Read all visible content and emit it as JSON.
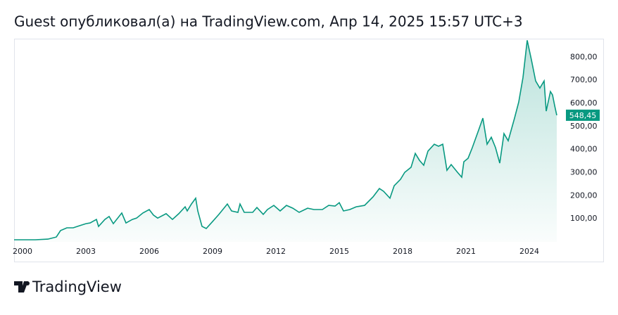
{
  "chart_data": {
    "type": "area",
    "title": "Guest опубликовал(а) на TradingView.com, Апр 14, 2025 15:57 UTC+3",
    "x": [
      1999.6,
      2000.6,
      2001.2,
      2001.6,
      2001.8,
      2002.1,
      2002.4,
      2002.7,
      2003.0,
      2003.2,
      2003.5,
      2003.6,
      2003.9,
      2004.1,
      2004.3,
      2004.7,
      2004.9,
      2005.2,
      2005.4,
      2005.7,
      2006.0,
      2006.2,
      2006.4,
      2006.8,
      2007.1,
      2007.4,
      2007.7,
      2007.8,
      2008.0,
      2008.2,
      2008.3,
      2008.5,
      2008.7,
      2009.0,
      2009.3,
      2009.7,
      2009.9,
      2010.2,
      2010.3,
      2010.5,
      2010.9,
      2011.1,
      2011.4,
      2011.6,
      2011.9,
      2012.2,
      2012.5,
      2012.8,
      2013.1,
      2013.5,
      2013.8,
      2014.2,
      2014.5,
      2014.8,
      2015.0,
      2015.2,
      2015.5,
      2015.8,
      2016.2,
      2016.6,
      2016.9,
      2017.1,
      2017.4,
      2017.6,
      2017.9,
      2018.1,
      2018.4,
      2018.6,
      2018.8,
      2019.0,
      2019.2,
      2019.5,
      2019.7,
      2019.9,
      2020.1,
      2020.3,
      2020.6,
      2020.8,
      2020.9,
      2021.1,
      2021.3,
      2021.6,
      2021.8,
      2022.0,
      2022.2,
      2022.4,
      2022.6,
      2022.8,
      2023.0,
      2023.3,
      2023.5,
      2023.7,
      2023.9,
      2024.1,
      2024.3,
      2024.5,
      2024.7,
      2024.8,
      2025.0,
      2025.1,
      2025.2,
      2025.3
    ],
    "values": [
      9,
      9,
      12,
      21,
      49,
      61,
      61,
      70,
      79,
      82,
      97,
      67,
      97,
      110,
      79,
      125,
      82,
      97,
      103,
      125,
      140,
      116,
      103,
      122,
      97,
      122,
      152,
      134,
      164,
      189,
      134,
      67,
      58,
      88,
      119,
      164,
      134,
      128,
      164,
      128,
      128,
      149,
      119,
      140,
      158,
      134,
      158,
      146,
      128,
      146,
      140,
      140,
      158,
      155,
      170,
      134,
      140,
      152,
      158,
      195,
      231,
      219,
      189,
      243,
      271,
      301,
      323,
      383,
      353,
      332,
      393,
      423,
      414,
      423,
      310,
      335,
      301,
      280,
      347,
      362,
      408,
      484,
      536,
      423,
      453,
      408,
      341,
      469,
      438,
      536,
      606,
      712,
      873,
      788,
      697,
      666,
      697,
      566,
      651,
      636,
      590,
      548.45
    ],
    "color": "#089981",
    "xlim": [
      1999.6,
      2025.6
    ],
    "xticks": [
      2000,
      2003,
      2006,
      2009,
      2012,
      2015,
      2018,
      2021,
      2024
    ],
    "ylim": [
      0,
      880
    ],
    "yticks": [
      {
        "value": 100,
        "label": "100,00"
      },
      {
        "value": 200,
        "label": "200,00"
      },
      {
        "value": 300,
        "label": "300,00"
      },
      {
        "value": 400,
        "label": "400,00"
      },
      {
        "value": 500,
        "label": "500,00"
      },
      {
        "value": 600,
        "label": "600,00"
      },
      {
        "value": 700,
        "label": "700,00"
      },
      {
        "value": 800,
        "label": "800,00"
      }
    ],
    "last_price": {
      "value": 548.45,
      "label": "548,45"
    },
    "grid": false
  },
  "logo": "TradingView"
}
